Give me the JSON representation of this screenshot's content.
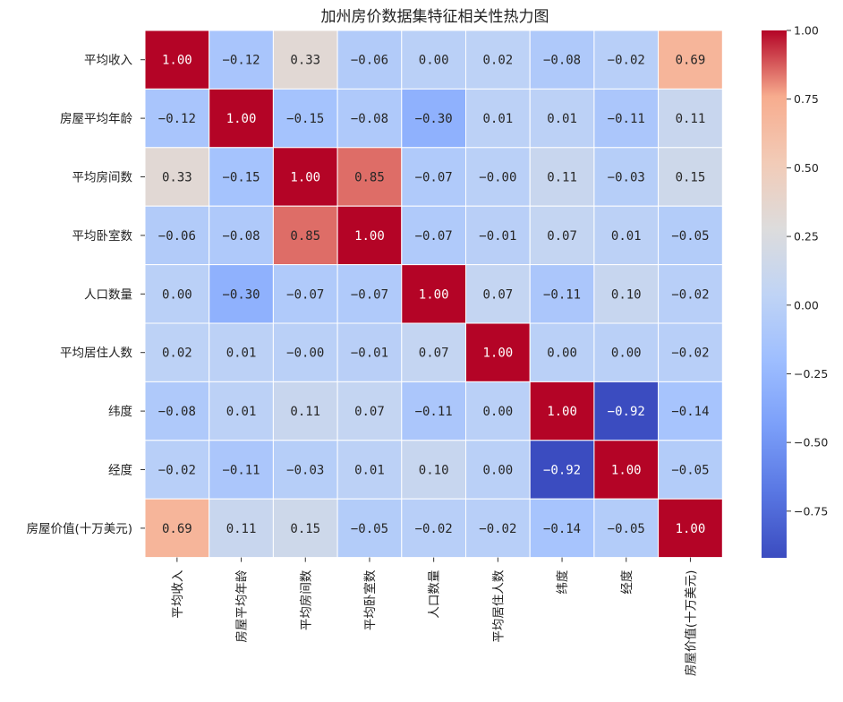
{
  "chart_data": {
    "type": "heatmap",
    "title": "加州房价数据集特征相关性热力图",
    "labels": [
      "平均收入",
      "房屋平均年龄",
      "平均房间数",
      "平均卧室数",
      "人口数量",
      "平均居住人数",
      "纬度",
      "经度",
      "房屋价值(十万美元)"
    ],
    "values": [
      [
        1.0,
        -0.12,
        0.33,
        -0.06,
        0.0,
        0.02,
        -0.08,
        -0.02,
        0.69
      ],
      [
        -0.12,
        1.0,
        -0.15,
        -0.08,
        -0.3,
        0.01,
        0.01,
        -0.11,
        0.11
      ],
      [
        0.33,
        -0.15,
        1.0,
        0.85,
        -0.07,
        -0.0,
        0.11,
        -0.03,
        0.15
      ],
      [
        -0.06,
        -0.08,
        0.85,
        1.0,
        -0.07,
        -0.01,
        0.07,
        0.01,
        -0.05
      ],
      [
        0.0,
        -0.3,
        -0.07,
        -0.07,
        1.0,
        0.07,
        -0.11,
        0.1,
        -0.02
      ],
      [
        0.02,
        0.01,
        -0.0,
        -0.01,
        0.07,
        1.0,
        0.0,
        0.0,
        -0.02
      ],
      [
        -0.08,
        0.01,
        0.11,
        0.07,
        -0.11,
        0.0,
        1.0,
        -0.92,
        -0.14
      ],
      [
        -0.02,
        -0.11,
        -0.03,
        0.01,
        0.1,
        0.0,
        -0.92,
        1.0,
        -0.05
      ],
      [
        0.69,
        0.11,
        0.15,
        -0.05,
        -0.02,
        -0.02,
        -0.14,
        -0.05,
        1.0
      ]
    ],
    "cell_labels": [
      [
        "1.00",
        "-0.12",
        "0.33",
        "-0.06",
        "0.00",
        "0.02",
        "-0.08",
        "-0.02",
        "0.69"
      ],
      [
        "-0.12",
        "1.00",
        "-0.15",
        "-0.08",
        "-0.30",
        "0.01",
        "0.01",
        "-0.11",
        "0.11"
      ],
      [
        "0.33",
        "-0.15",
        "1.00",
        "0.85",
        "-0.07",
        "-0.00",
        "0.11",
        "-0.03",
        "0.15"
      ],
      [
        "-0.06",
        "-0.08",
        "0.85",
        "1.00",
        "-0.07",
        "-0.01",
        "0.07",
        "0.01",
        "-0.05"
      ],
      [
        "0.00",
        "-0.30",
        "-0.07",
        "-0.07",
        "1.00",
        "0.07",
        "-0.11",
        "0.10",
        "-0.02"
      ],
      [
        "0.02",
        "0.01",
        "-0.00",
        "-0.01",
        "0.07",
        "1.00",
        "0.00",
        "0.00",
        "-0.02"
      ],
      [
        "-0.08",
        "0.01",
        "0.11",
        "0.07",
        "-0.11",
        "0.00",
        "1.00",
        "-0.92",
        "-0.14"
      ],
      [
        "-0.02",
        "-0.11",
        "-0.03",
        "0.01",
        "0.10",
        "0.00",
        "-0.92",
        "1.00",
        "-0.05"
      ],
      [
        "0.69",
        "0.11",
        "0.15",
        "-0.05",
        "-0.02",
        "-0.02",
        "-0.14",
        "-0.05",
        "1.00"
      ]
    ],
    "colorscale": "coolwarm",
    "vmin": -0.92,
    "vmax": 1.0,
    "colorbar": {
      "ticks": [
        1.0,
        0.75,
        0.5,
        0.25,
        0.0,
        -0.25,
        -0.5,
        -0.75
      ],
      "tick_labels": [
        "1.00",
        "0.75",
        "0.50",
        "0.25",
        "0.00",
        "−0.25",
        "−0.50",
        "−0.75"
      ]
    },
    "grid": false,
    "legend": "colorbar-right"
  }
}
